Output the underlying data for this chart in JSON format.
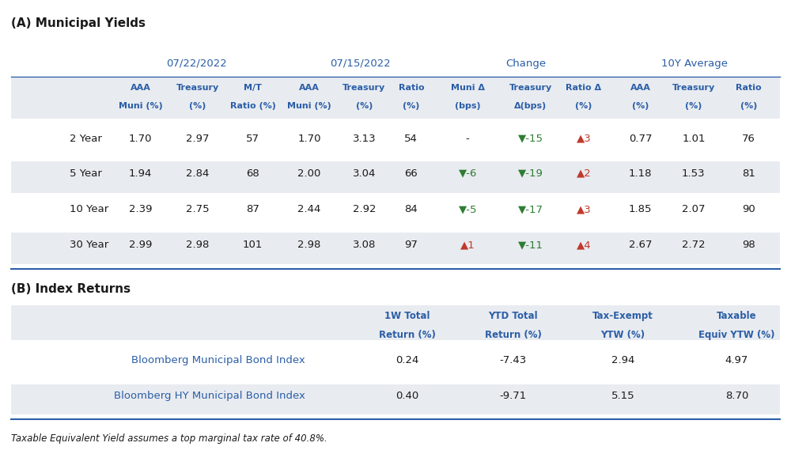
{
  "title_a": "(A) Municipal Yields",
  "title_b": "(B) Index Returns",
  "footnote": "Taxable Equivalent Yield assumes a top marginal tax rate of 40.8%.",
  "section_a": {
    "group_headers": [
      "07/22/2022",
      "07/15/2022",
      "Change",
      "10Y Average"
    ],
    "col_headers_line1": [
      "AAA",
      "Treasury",
      "M/T",
      "AAA",
      "Treasury",
      "Ratio",
      "Muni Δ",
      "Treasury",
      "Ratio Δ",
      "AAA",
      "Treasury",
      "Ratio"
    ],
    "col_headers_line2": [
      "Muni (%)",
      "(%)",
      "Ratio (%)",
      "Muni (%)",
      "(%)",
      "(%)",
      "(bps)",
      "Δ(bps)",
      "(%)",
      "(%)",
      "(%)",
      "(%)"
    ],
    "row_labels": [
      "2 Year",
      "5 Year",
      "10 Year",
      "30 Year"
    ],
    "data": [
      [
        "1.70",
        "2.97",
        "57",
        "1.70",
        "3.13",
        "54",
        "-",
        "▼-15",
        "▲3",
        "0.77",
        "1.01",
        "76"
      ],
      [
        "1.94",
        "2.84",
        "68",
        "2.00",
        "3.04",
        "66",
        "▼-6",
        "▼-19",
        "▲2",
        "1.18",
        "1.53",
        "81"
      ],
      [
        "2.39",
        "2.75",
        "87",
        "2.44",
        "2.92",
        "84",
        "▼-5",
        "▼-17",
        "▲3",
        "1.85",
        "2.07",
        "90"
      ],
      [
        "2.99",
        "2.98",
        "101",
        "2.98",
        "3.08",
        "97",
        "▲1",
        "▼-11",
        "▲4",
        "2.67",
        "2.72",
        "98"
      ]
    ],
    "cell_colors": [
      [
        "plain",
        "plain",
        "plain",
        "plain",
        "plain",
        "plain",
        "plain",
        "down",
        "up",
        "plain",
        "plain",
        "plain"
      ],
      [
        "plain",
        "plain",
        "plain",
        "plain",
        "plain",
        "plain",
        "down",
        "down",
        "up",
        "plain",
        "plain",
        "plain"
      ],
      [
        "plain",
        "plain",
        "plain",
        "plain",
        "plain",
        "plain",
        "down",
        "down",
        "up",
        "plain",
        "plain",
        "plain"
      ],
      [
        "plain",
        "plain",
        "plain",
        "plain",
        "plain",
        "plain",
        "up",
        "down",
        "up",
        "plain",
        "plain",
        "plain"
      ]
    ]
  },
  "section_b": {
    "col_headers_line1": [
      "1W Total",
      "YTD Total",
      "Tax-Exempt",
      "Taxable"
    ],
    "col_headers_line2": [
      "Return (%)",
      "Return (%)",
      "YTW (%)",
      "Equiv YTW (%)"
    ],
    "row_labels": [
      "Bloomberg Municipal Bond Index",
      "Bloomberg HY Municipal Bond Index"
    ],
    "data": [
      [
        "0.24",
        "-7.43",
        "2.94",
        "4.97"
      ],
      [
        "0.40",
        "-9.71",
        "5.15",
        "8.70"
      ]
    ]
  },
  "colors": {
    "header_blue": "#2B5EA7",
    "row_label_blue": "#2B5EA7",
    "text_dark": "#1a1a1a",
    "bg_light": "#E8EBF0",
    "bg_white": "#FFFFFF",
    "up_red": "#C0392B",
    "down_green": "#2E7D32",
    "plain_text": "#1a1a1a",
    "separator_line": "#2B5EA7",
    "title_text": "#1a1a1a"
  }
}
